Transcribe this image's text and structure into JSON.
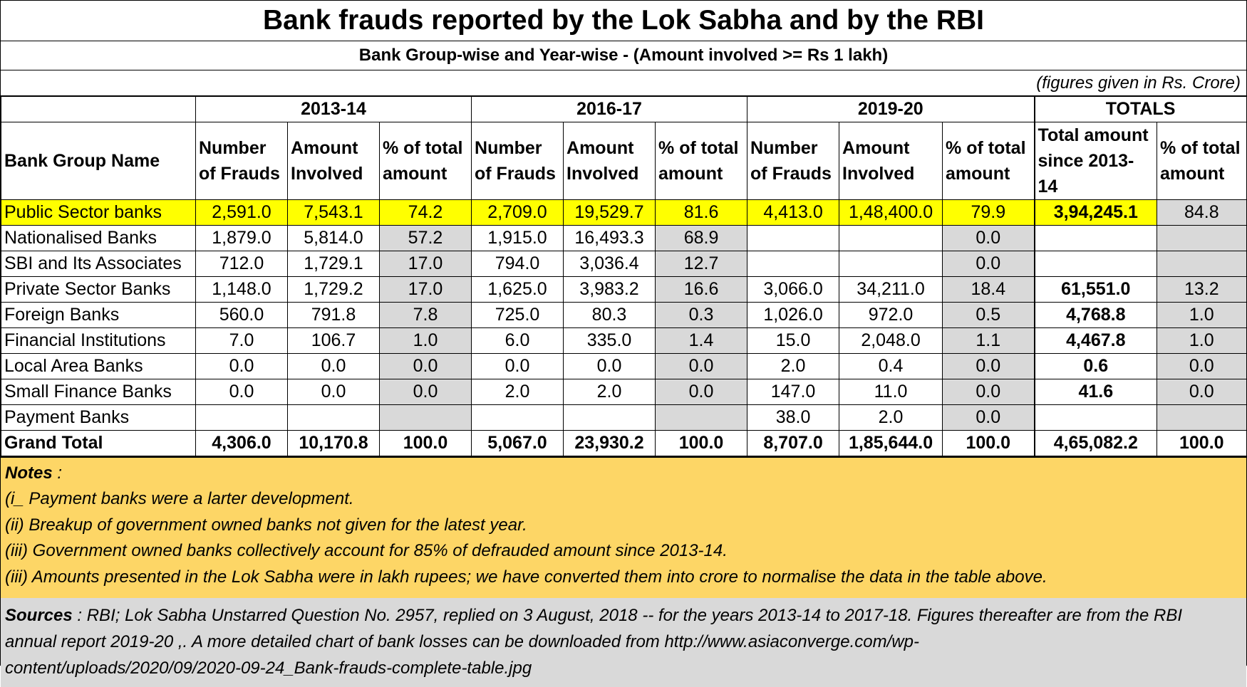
{
  "title": "Bank frauds reported by the Lok Sabha and by the RBI",
  "subtitle": "Bank Group-wise and Year-wise - (Amount involved >= Rs 1 lakh)",
  "unit_note": "(figures given in Rs. Crore)",
  "table": {
    "years": [
      "2013-14",
      "2016-17",
      "2019-20"
    ],
    "totals_label": "TOTALS",
    "first_col_header": "Bank Group Name",
    "col_headers": {
      "number": "Number of Frauds",
      "amount": "Amount Involved",
      "pct": "% of total amount",
      "total_amount": "Total amount since 2013-14",
      "total_pct": "% of total amount"
    },
    "rows": [
      {
        "name": "Public Sector banks",
        "c": [
          "2,591.0",
          "7,543.1",
          "74.2",
          "2,709.0",
          "19,529.7",
          "81.6",
          "4,413.0",
          "1,48,400.0",
          "79.9",
          "3,94,245.1",
          "84.8"
        ]
      },
      {
        "name": "Nationalised Banks",
        "c": [
          "1,879.0",
          "5,814.0",
          "57.2",
          "1,915.0",
          "16,493.3",
          "68.9",
          "",
          "",
          "0.0",
          "",
          ""
        ]
      },
      {
        "name": "SBI and Its Associates",
        "c": [
          "712.0",
          "1,729.1",
          "17.0",
          "794.0",
          "3,036.4",
          "12.7",
          "",
          "",
          "0.0",
          "",
          ""
        ]
      },
      {
        "name": "Private Sector Banks",
        "c": [
          "1,148.0",
          "1,729.2",
          "17.0",
          "1,625.0",
          "3,983.2",
          "16.6",
          "3,066.0",
          "34,211.0",
          "18.4",
          "61,551.0",
          "13.2"
        ]
      },
      {
        "name": "Foreign Banks",
        "c": [
          "560.0",
          "791.8",
          "7.8",
          "725.0",
          "80.3",
          "0.3",
          "1,026.0",
          "972.0",
          "0.5",
          "4,768.8",
          "1.0"
        ]
      },
      {
        "name": "Financial Institutions",
        "c": [
          "7.0",
          "106.7",
          "1.0",
          "6.0",
          "335.0",
          "1.4",
          "15.0",
          "2,048.0",
          "1.1",
          "4,467.8",
          "1.0"
        ]
      },
      {
        "name": "Local Area Banks",
        "c": [
          "0.0",
          "0.0",
          "0.0",
          "0.0",
          "0.0",
          "0.0",
          "2.0",
          "0.4",
          "0.0",
          "0.6",
          "0.0"
        ]
      },
      {
        "name": "Small Finance Banks",
        "c": [
          "0.0",
          "0.0",
          "0.0",
          "2.0",
          "2.0",
          "0.0",
          "147.0",
          "11.0",
          "0.0",
          "41.6",
          "0.0"
        ]
      },
      {
        "name": "Payment Banks",
        "c": [
          "",
          "",
          "",
          "",
          "",
          "",
          "38.0",
          "2.0",
          "0.0",
          "",
          ""
        ]
      },
      {
        "name": "Grand Total",
        "c": [
          "4,306.0",
          "10,170.8",
          "100.0",
          "5,067.0",
          "23,930.2",
          "100.0",
          "8,707.0",
          "1,85,644.0",
          "100.0",
          "4,65,082.2",
          "100.0"
        ]
      }
    ]
  },
  "notes": {
    "label": "Notes",
    "label_suffix": " :",
    "items": [
      "(i_ Payment banks were a larter development.",
      "(ii) Breakup of government owned banks not given for the latest year.",
      "(iii) Government owned banks collectively account for 85% of defrauded amount since 2013-14.",
      "(iii) Amounts presented in the Lok Sabha were in lakh rupees; we have converted them into crore to normalise the data in the table above."
    ]
  },
  "sources": {
    "label": "Sources",
    "lines": [
      " : RBI; Lok Sabha Unstarred Question No. 2957, replied on 3 August, 2018  -- for the years  2013-14 to 2017-18.  Figures thereafter are from the RBI",
      "annual report 2019-20        ,. A more detailed chart of bank losses can be downloaded from  http://www.asiaconverge.com/wp-",
      "content/uploads/2020/09/2020-09-24_Bank-frauds-complete-table.jpg"
    ]
  },
  "colors": {
    "highlight": "#ffff00",
    "grey_cell": "#d9d9d9",
    "notes_bg": "#fdd666",
    "sources_bg": "#d9d9d9"
  }
}
